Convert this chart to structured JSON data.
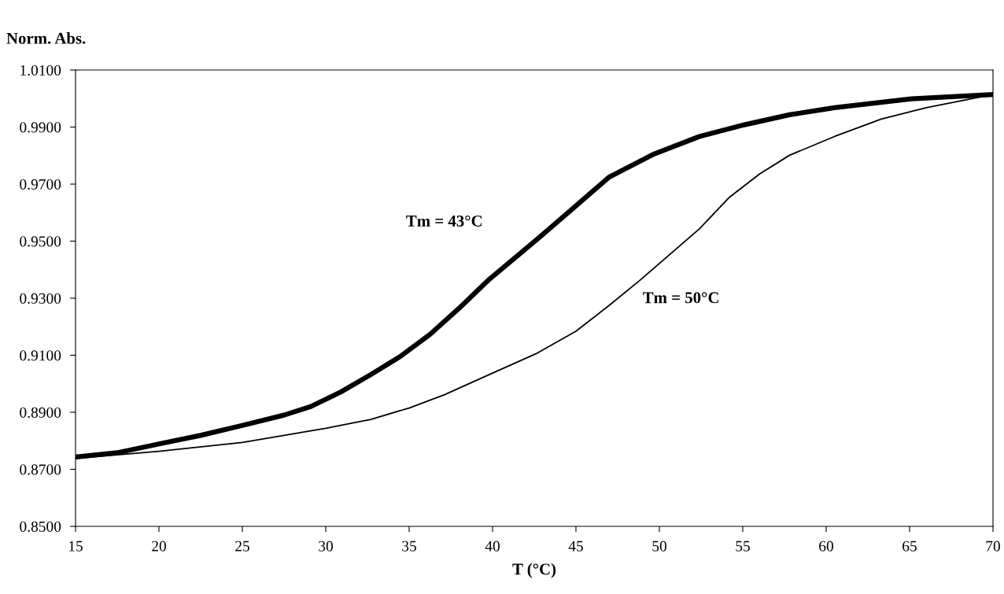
{
  "chart_data": {
    "type": "line",
    "xlabel": "T (°C)",
    "ylabel": "Norm. Abs.",
    "xlim": [
      15,
      70
    ],
    "xticks": [
      15,
      20,
      25,
      30,
      35,
      40,
      45,
      50,
      55,
      60,
      65,
      70
    ],
    "ylim": [
      0.85,
      1.01
    ],
    "yticks": [
      {
        "value": 0.85,
        "label": "0.8500"
      },
      {
        "value": 0.87,
        "label": "0.8700"
      },
      {
        "value": 0.89,
        "label": "0.8900"
      },
      {
        "value": 0.91,
        "label": "0.9100"
      },
      {
        "value": 0.93,
        "label": "0.9300"
      },
      {
        "value": 0.95,
        "label": "0.9500"
      },
      {
        "value": 0.97,
        "label": "0.9700"
      },
      {
        "value": 0.99,
        "label": "0.9900"
      },
      {
        "value": 1.01,
        "label": "1.0100"
      }
    ],
    "grid": false,
    "legend": false,
    "marker": "none",
    "line_style": "solid",
    "series": [
      {
        "color": "#000000",
        "x": [
          15,
          17.5,
          20,
          22.5,
          25,
          27.5,
          29.1,
          30.9,
          32.7,
          34.5,
          36.25,
          38,
          39.8,
          41.25,
          42.7,
          45,
          47,
          49.7,
          52.4,
          55.1,
          57.8,
          60.5,
          65.1,
          70
        ],
        "values": [
          0.8743,
          0.8758,
          0.8789,
          0.8819,
          0.8854,
          0.889,
          0.892,
          0.8971,
          0.9032,
          0.9097,
          0.9173,
          0.9265,
          0.9366,
          0.9437,
          0.9508,
          0.9624,
          0.9725,
          0.9806,
          0.9867,
          0.9908,
          0.9943,
          0.9968,
          0.9999,
          1.0014
        ]
      },
      {
        "color": "#000000",
        "x": [
          15,
          20,
          25,
          30,
          32.7,
          35,
          37.1,
          39.8,
          42.6,
          45,
          47,
          48.8,
          50.6,
          52.4,
          54.2,
          56,
          57.8,
          60.5,
          63.3,
          66,
          70
        ],
        "values": [
          0.8738,
          0.8763,
          0.8794,
          0.8844,
          0.8875,
          0.8915,
          0.8961,
          0.9032,
          0.9105,
          0.9184,
          0.9275,
          0.9361,
          0.9452,
          0.9543,
          0.9654,
          0.9735,
          0.9801,
          0.9867,
          0.9928,
          0.9968,
          1.0014
        ]
      }
    ],
    "annotations": [
      "Tm = 43°C",
      "Tm = 50°C"
    ]
  }
}
